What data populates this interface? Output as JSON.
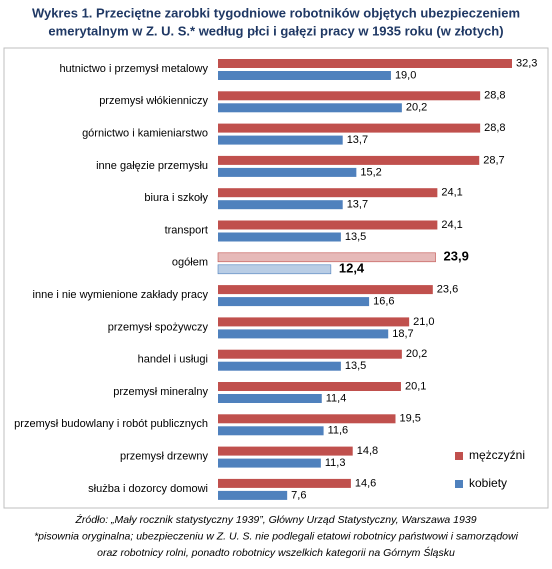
{
  "chart_data": {
    "type": "bar",
    "orientation": "horizontal",
    "title": [
      "Wykres 1. Przeciętne zarobki tygodniowe robotników objętych ubezpieczeniem",
      "emerytalnym w Z. U. S.* według płci i gałęzi pracy w 1935 roku (w złotych)"
    ],
    "categories": [
      "hutnictwo i przemysł metalowy",
      "przemysł włókienniczy",
      "górnictwo i kamieniarstwo",
      "inne gałęzie przemysłu",
      "biura i szkoły",
      "transport",
      "ogółem",
      "inne i nie wymienione zakłady pracy",
      "przemysł spożywczy",
      "handel i usługi",
      "przemysł mineralny",
      "przemysł budowlany i robót publicznych",
      "przemysł drzewny",
      "służba i dozorcy domowi"
    ],
    "series": [
      {
        "name": "mężczyźni",
        "color": "#c0504d",
        "highlight_color": "#e6b9b8",
        "values": [
          32.3,
          28.8,
          28.8,
          28.7,
          24.1,
          24.1,
          23.9,
          23.6,
          21.0,
          20.2,
          20.1,
          19.5,
          14.8,
          14.6
        ],
        "value_labels": [
          "32,3",
          "28,8",
          "28,8",
          "28,7",
          "24,1",
          "24,1",
          "23,9",
          "23,6",
          "21,0",
          "20,2",
          "20,1",
          "19,5",
          "14,8",
          "14,6"
        ]
      },
      {
        "name": "kobiety",
        "color": "#4f81bd",
        "highlight_color": "#b9cde5",
        "values": [
          19.0,
          20.2,
          13.7,
          15.2,
          13.7,
          13.5,
          12.4,
          16.6,
          18.7,
          13.5,
          11.4,
          11.6,
          11.3,
          7.6
        ],
        "value_labels": [
          "19,0",
          "20,2",
          "13,7",
          "15,2",
          "13,7",
          "13,5",
          "12,4",
          "16,6",
          "18,7",
          "13,5",
          "11,4",
          "11,6",
          "11,3",
          "7,6"
        ]
      }
    ],
    "highlight_index": 6,
    "legend": "lower right",
    "notes": [
      "Źródło: „Mały rocznik statystyczny 1939”, Główny Urząd Statystyczny, Warszawa 1939",
      "*pisownia oryginalna; ubezpieczeniu w Z. U. S. nie podlegali etatowi robotnicy państwowi i samorządowi",
      "oraz robotnicy rolni, ponadto robotnicy wszelkich kategorii na Górnym Śląsku"
    ]
  }
}
